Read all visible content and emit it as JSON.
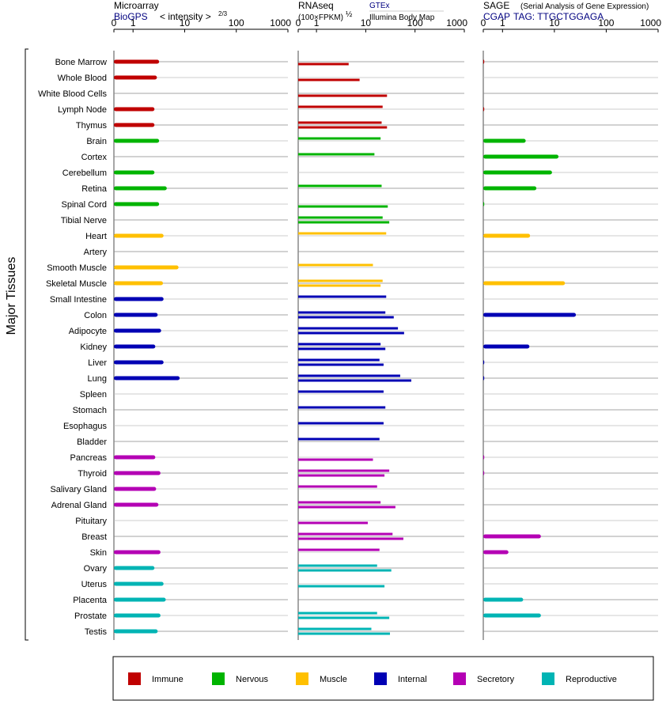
{
  "chart_data": {
    "type": "bar",
    "ylabel": "Major Tissues",
    "tissues": [
      "Bone Marrow",
      "Whole Blood",
      "White Blood Cells",
      "Lymph Node",
      "Thymus",
      "Brain",
      "Cortex",
      "Cerebellum",
      "Retina",
      "Spinal Cord",
      "Tibial Nerve",
      "Heart",
      "Artery",
      "Smooth Muscle",
      "Skeletal Muscle",
      "Small Intestine",
      "Colon",
      "Adipocyte",
      "Kidney",
      "Liver",
      "Lung",
      "Spleen",
      "Stomach",
      "Esophagus",
      "Bladder",
      "Pancreas",
      "Thyroid",
      "Salivary Gland",
      "Adrenal Gland",
      "Pituitary",
      "Breast",
      "Skin",
      "Ovary",
      "Uterus",
      "Placenta",
      "Prostate",
      "Testis"
    ],
    "groups": [
      0,
      0,
      0,
      0,
      0,
      1,
      1,
      1,
      1,
      1,
      1,
      2,
      2,
      2,
      2,
      3,
      3,
      3,
      3,
      3,
      3,
      3,
      3,
      3,
      3,
      4,
      4,
      4,
      4,
      4,
      4,
      4,
      5,
      5,
      5,
      5,
      5
    ],
    "legend": [
      {
        "name": "Immune",
        "color": "#c00000"
      },
      {
        "name": "Nervous",
        "color": "#00b400"
      },
      {
        "name": "Muscle",
        "color": "#ffc000"
      },
      {
        "name": "Internal",
        "color": "#0000b4"
      },
      {
        "name": "Secretory",
        "color": "#b400b4"
      },
      {
        "name": "Reproductive",
        "color": "#00b4b4"
      }
    ],
    "panels": [
      {
        "title": "Microarray",
        "subtitle_left": "BioGPS",
        "subtitle_right": "< intensity >",
        "subtitle_exp": "2/3",
        "ticks": [
          "0",
          "1",
          "10",
          "100",
          "1000"
        ],
        "xlim": [
          0,
          1000
        ],
        "values": [
          [
            3.2
          ],
          [
            2.9
          ],
          [
            null
          ],
          [
            2.6
          ],
          [
            2.6
          ],
          [
            3.2
          ],
          [
            null
          ],
          [
            2.6
          ],
          [
            4.5
          ],
          [
            3.2
          ],
          [
            null
          ],
          [
            3.9
          ],
          [
            null
          ],
          [
            7.6
          ],
          [
            3.8
          ],
          [
            3.9
          ],
          [
            3.0
          ],
          [
            3.5
          ],
          [
            2.7
          ],
          [
            3.9
          ],
          [
            8.0
          ],
          [
            null
          ],
          [
            null
          ],
          [
            null
          ],
          [
            null
          ],
          [
            2.7
          ],
          [
            3.4
          ],
          [
            2.8
          ],
          [
            3.1
          ],
          [
            null
          ],
          [
            null
          ],
          [
            3.4
          ],
          [
            2.6
          ],
          [
            3.9
          ],
          [
            4.3
          ],
          [
            3.4
          ],
          [
            3.0
          ]
        ]
      },
      {
        "title": "RNAseq",
        "subtitle_left": "(100×FPKM)",
        "subtitle_exp": "½",
        "source1": "GTEx",
        "source2": "Illumina Body Map",
        "ticks": [
          "0",
          "1",
          "10",
          "100",
          "1000"
        ],
        "xlim": [
          0,
          1000
        ],
        "values": [
          [
            null,
            4.5
          ],
          [
            null,
            7.5
          ],
          [
            null,
            27
          ],
          [
            22,
            null
          ],
          [
            21,
            27
          ],
          [
            20,
            null
          ],
          [
            15,
            null
          ],
          [
            null,
            null
          ],
          [
            21,
            null
          ],
          [
            null,
            28
          ],
          [
            22,
            30
          ],
          [
            26,
            null
          ],
          [
            null,
            null
          ],
          [
            14,
            null
          ],
          [
            22,
            20
          ],
          [
            26,
            null
          ],
          [
            25,
            37
          ],
          [
            45,
            60
          ],
          [
            20,
            25
          ],
          [
            19,
            23
          ],
          [
            50,
            84
          ],
          [
            23,
            null
          ],
          [
            25,
            null
          ],
          [
            23,
            null
          ],
          [
            19,
            null
          ],
          [
            null,
            14
          ],
          [
            30,
            24
          ],
          [
            17,
            null
          ],
          [
            20,
            40
          ],
          [
            null,
            11
          ],
          [
            35,
            58
          ],
          [
            19,
            null
          ],
          [
            17,
            33
          ],
          [
            null,
            24
          ],
          [
            null,
            null
          ],
          [
            17,
            30
          ],
          [
            13,
            31
          ]
        ]
      },
      {
        "title": "SAGE",
        "subtitle_note": "(Serial Analysis of Gene Expression)",
        "subtitle_left": "CGAP",
        "tag_label": "TAG:",
        "tag_value": "TTGCTGGAGA",
        "ticks": [
          "0",
          "1",
          "10",
          "100",
          "1000"
        ],
        "xlim": [
          0,
          1000
        ],
        "values": [
          [
            0.05
          ],
          [
            null
          ],
          [
            null
          ],
          [
            0.05
          ],
          [
            null
          ],
          [
            2.8
          ],
          [
            12
          ],
          [
            9
          ],
          [
            4.5
          ],
          [
            0.05
          ],
          [
            null
          ],
          [
            3.4
          ],
          [
            null
          ],
          [
            null
          ],
          [
            16
          ],
          [
            null
          ],
          [
            26
          ],
          [
            null
          ],
          [
            3.3
          ],
          [
            0.05
          ],
          [
            0.05
          ],
          [
            null
          ],
          [
            null
          ],
          [
            null
          ],
          [
            null
          ],
          [
            0.05
          ],
          [
            0.05
          ],
          [
            null
          ],
          [
            null
          ],
          [
            null
          ],
          [
            5.5
          ],
          [
            1.3
          ],
          [
            null
          ],
          [
            null
          ],
          [
            2.5
          ],
          [
            5.5
          ],
          [
            null
          ]
        ]
      }
    ]
  }
}
